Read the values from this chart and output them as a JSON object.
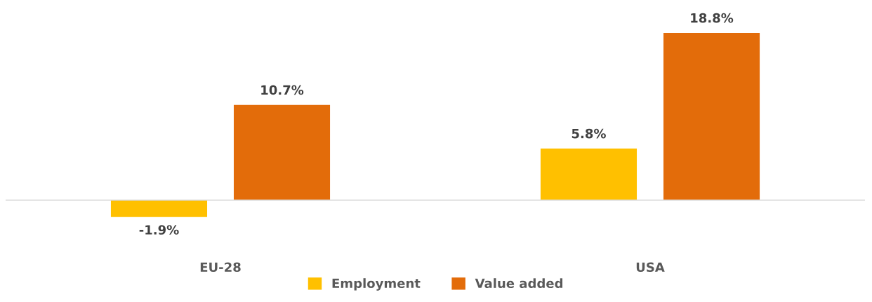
{
  "chart_data": {
    "type": "bar",
    "categories": [
      "EU-28",
      "USA"
    ],
    "series": [
      {
        "name": "Employment",
        "color": "#ffc000",
        "values": [
          -1.9,
          5.8
        ],
        "value_labels": [
          "-1.9%",
          "5.8%"
        ]
      },
      {
        "name": "Value added",
        "color": "#e36c0a",
        "values": [
          10.7,
          18.8
        ],
        "value_labels": [
          "10.7%",
          "18.8%"
        ]
      }
    ],
    "tick_labels": "x",
    "grid": false,
    "legend": "bottom"
  }
}
